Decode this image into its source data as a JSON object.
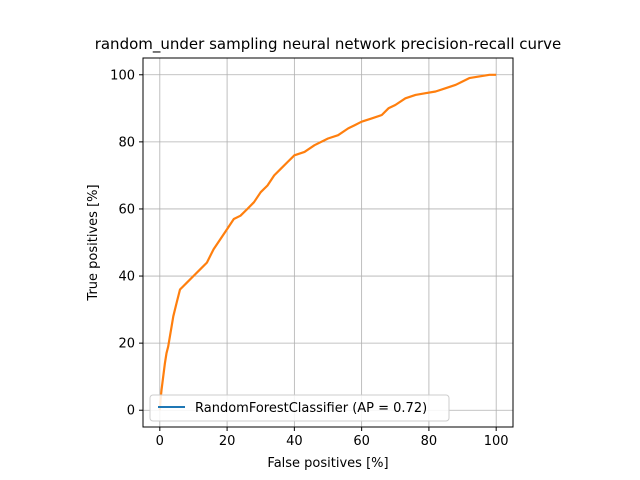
{
  "chart_data": {
    "type": "line",
    "title": "random_under sampling neural network precision-recall curve",
    "xlabel": "False positives [%]",
    "ylabel": "True positives [%]",
    "xlim": [
      -5,
      105
    ],
    "ylim": [
      -5,
      105
    ],
    "xticks": [
      0,
      20,
      40,
      60,
      80,
      100
    ],
    "yticks": [
      0,
      20,
      40,
      60,
      80,
      100
    ],
    "grid": true,
    "legend_position": "lower left",
    "colors": {
      "legend_line": "#1f77b4",
      "curve": "#ff7f0e"
    },
    "series": [
      {
        "name": "RandomForestClassifier (AP = 0.72)",
        "x": [
          0,
          0.2,
          0.5,
          1,
          1.5,
          2,
          2.5,
          3,
          3.5,
          4,
          5,
          6,
          7,
          8,
          10,
          12,
          14,
          16,
          18,
          20,
          22,
          24,
          26,
          28,
          30,
          32,
          34,
          36,
          38,
          40,
          43,
          46,
          50,
          53,
          56,
          58,
          60,
          63,
          66,
          68,
          70,
          73,
          76,
          79,
          82,
          85,
          88,
          90,
          92,
          95,
          98,
          100
        ],
        "y": [
          0,
          3,
          6,
          10,
          14,
          17,
          19,
          22,
          25,
          28,
          32,
          36,
          37,
          38,
          40,
          42,
          44,
          48,
          51,
          54,
          57,
          58,
          60,
          62,
          65,
          67,
          70,
          72,
          74,
          76,
          77,
          79,
          81,
          82,
          84,
          85,
          86,
          87,
          88,
          90,
          91,
          93,
          94,
          94.5,
          95,
          96,
          97,
          98,
          99,
          99.5,
          100,
          100
        ]
      }
    ]
  }
}
